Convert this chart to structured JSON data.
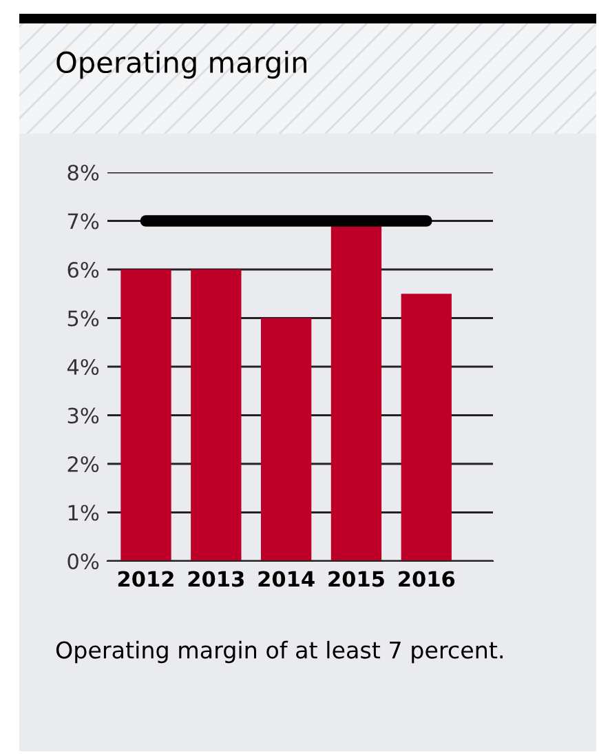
{
  "chart_data": {
    "type": "bar",
    "title": "Operating margin",
    "categories": [
      "2012",
      "2013",
      "2014",
      "2015",
      "2016"
    ],
    "series": [
      {
        "color": "#be0028",
        "values": [
          6,
          6,
          5,
          6.9,
          5.5
        ]
      },
      {
        "type": "line",
        "color": "#000000",
        "values": [
          7,
          7,
          7,
          7,
          7
        ]
      }
    ],
    "ylim": [
      0,
      8
    ],
    "yticks": [
      {
        "value": 0,
        "label": "0%"
      },
      {
        "value": 1,
        "label": "1%"
      },
      {
        "value": 2,
        "label": "2%"
      },
      {
        "value": 3,
        "label": "3%"
      },
      {
        "value": 4,
        "label": "4%"
      },
      {
        "value": 5,
        "label": "5%"
      },
      {
        "value": 6,
        "label": "6%"
      },
      {
        "value": 7,
        "label": "7%"
      },
      {
        "value": 8,
        "label": "8%"
      }
    ],
    "grid": "y",
    "marker": "none",
    "annotations": [
      "Operating margin of at least 7 percent."
    ]
  }
}
